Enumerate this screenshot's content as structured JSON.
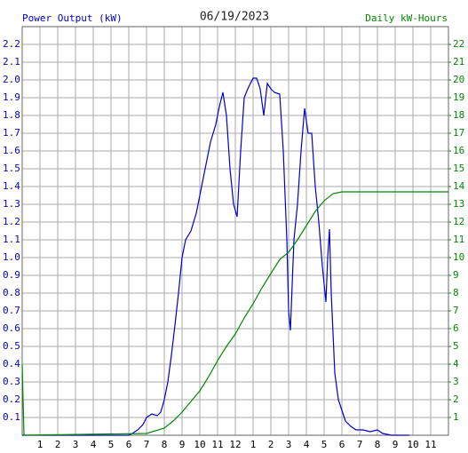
{
  "chart_data": {
    "type": "line",
    "title": "06/19/2023",
    "ylabel": "Power Output (kW)",
    "y2label": "Daily kW-Hours",
    "xlim": [
      0,
      24
    ],
    "xticks": [
      1,
      2,
      3,
      4,
      5,
      6,
      7,
      8,
      9,
      10,
      11,
      12,
      {
        "value": 13,
        "label": "1"
      },
      {
        "value": 14,
        "label": "2"
      },
      {
        "value": 15,
        "label": "3"
      },
      {
        "value": 16,
        "label": "4"
      },
      {
        "value": 17,
        "label": "5"
      },
      {
        "value": 18,
        "label": "6"
      },
      {
        "value": 19,
        "label": "7"
      },
      {
        "value": 20,
        "label": "8"
      },
      {
        "value": 21,
        "label": "9"
      },
      {
        "value": 22,
        "label": "10"
      },
      {
        "value": 23,
        "label": "11"
      }
    ],
    "ylim": [
      0,
      2.3
    ],
    "yticks": [
      0.1,
      0.2,
      0.3,
      0.4,
      0.5,
      0.6,
      0.7,
      0.8,
      0.9,
      {
        "value": 1,
        "label": "1.0"
      },
      1.1,
      1.2,
      1.3,
      1.4,
      1.5,
      1.6,
      1.7,
      1.8,
      1.9,
      {
        "value": 2,
        "label": "2.0"
      },
      2.1,
      2.2
    ],
    "y2lim": [
      0,
      23
    ],
    "y2ticks": [
      1,
      2,
      3,
      4,
      5,
      6,
      7,
      8,
      9,
      10,
      11,
      12,
      13,
      14,
      15,
      16,
      17,
      18,
      19,
      20,
      21,
      22
    ],
    "grid": true,
    "series": [
      {
        "color": "#0000cc",
        "x": [
          0,
          6.0,
          6.2,
          6.5,
          6.8,
          7.0,
          7.3,
          7.6,
          7.8,
          8.0,
          8.2,
          8.4,
          8.6,
          8.8,
          9.0,
          9.2,
          9.5,
          9.8,
          10.0,
          10.3,
          10.6,
          10.9,
          11.1,
          11.3,
          11.5,
          11.7,
          11.9,
          12.1,
          12.3,
          12.5,
          12.7,
          13.0,
          13.2,
          13.4,
          13.6,
          13.8,
          14.0,
          14.2,
          14.5,
          14.7,
          14.9,
          15.0,
          15.1,
          15.3,
          15.5,
          15.7,
          15.9,
          16.1,
          16.3,
          16.5,
          16.7,
          16.9,
          17.1,
          17.2,
          17.3,
          17.4,
          17.6,
          17.8,
          18.0,
          18.2,
          18.5,
          18.8,
          19.2,
          19.6,
          20.0,
          20.3,
          20.8,
          21.8
        ],
        "values": [
          0,
          0,
          0.01,
          0.03,
          0.06,
          0.1,
          0.12,
          0.11,
          0.13,
          0.2,
          0.3,
          0.45,
          0.62,
          0.8,
          1.0,
          1.1,
          1.15,
          1.25,
          1.35,
          1.5,
          1.65,
          1.75,
          1.85,
          1.93,
          1.8,
          1.5,
          1.3,
          1.23,
          1.6,
          1.9,
          1.95,
          2.01,
          2.01,
          1.95,
          1.8,
          1.98,
          1.95,
          1.93,
          1.92,
          1.6,
          1.1,
          0.7,
          0.59,
          1.1,
          1.3,
          1.6,
          1.84,
          1.7,
          1.7,
          1.4,
          1.2,
          0.95,
          0.75,
          1.0,
          1.16,
          0.8,
          0.35,
          0.2,
          0.14,
          0.08,
          0.05,
          0.03,
          0.03,
          0.02,
          0.03,
          0.01,
          0,
          0
        ]
      },
      {
        "color": "#008800",
        "axis": "y2",
        "x": [
          0,
          0.1,
          7.0,
          8.0,
          8.5,
          9.0,
          9.5,
          10.0,
          10.5,
          11.0,
          11.5,
          12.0,
          12.5,
          13.0,
          13.5,
          14.0,
          14.5,
          15.0,
          15.5,
          16.0,
          16.5,
          17.0,
          17.5,
          18.0,
          19.0,
          20.0,
          24.0
        ],
        "values": [
          4,
          0,
          0.1,
          0.4,
          0.8,
          1.3,
          1.9,
          2.5,
          3.3,
          4.2,
          5.0,
          5.7,
          6.6,
          7.4,
          8.3,
          9.1,
          9.9,
          10.3,
          11.0,
          11.8,
          12.6,
          13.2,
          13.6,
          13.7,
          13.7,
          13.7,
          13.7
        ]
      }
    ]
  }
}
